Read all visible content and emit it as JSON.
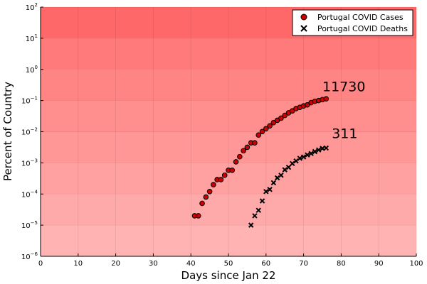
{
  "chart_data": {
    "type": "scatter",
    "title": "",
    "xlabel": "Days since Jan 22",
    "ylabel": "Percent of Country",
    "xlim": [
      0,
      100
    ],
    "ylim_log10": [
      -6,
      2
    ],
    "y_scale": "log",
    "x_ticks": [
      0,
      10,
      20,
      30,
      40,
      50,
      60,
      70,
      80,
      90,
      100
    ],
    "y_ticks": [
      {
        "exp": -6,
        "label": "10",
        "sup": "−6"
      },
      {
        "exp": -5,
        "label": "10",
        "sup": "−5"
      },
      {
        "exp": -4,
        "label": "10",
        "sup": "−4"
      },
      {
        "exp": -3,
        "label": "10",
        "sup": "−3"
      },
      {
        "exp": -2,
        "label": "10",
        "sup": "−2"
      },
      {
        "exp": -1,
        "label": "10",
        "sup": "−1"
      },
      {
        "exp": 0,
        "label": "10",
        "sup": "0"
      },
      {
        "exp": 1,
        "label": "10",
        "sup": "1"
      },
      {
        "exp": 2,
        "label": "10",
        "sup": "2"
      }
    ],
    "grid": true,
    "legend_position": "top-right",
    "background_bands": [
      "#ffb3b3",
      "#ffaaaa",
      "#ffa1a1",
      "#ff9797",
      "#ff8e8e",
      "#ff8585",
      "#ff7a7a",
      "#ff6868"
    ],
    "series": [
      {
        "name": "Portugal COVID Cases",
        "marker": "circle",
        "color": "#cc0000",
        "x": [
          41,
          42,
          43,
          44,
          45,
          46,
          47,
          48,
          49,
          50,
          51,
          52,
          53,
          54,
          55,
          56,
          57,
          58,
          59,
          60,
          61,
          62,
          63,
          64,
          65,
          66,
          67,
          68,
          69,
          70,
          71,
          72,
          73,
          74,
          75,
          76
        ],
        "y": [
          2e-05,
          2e-05,
          5e-05,
          8e-05,
          0.00012,
          0.0002,
          0.00029,
          0.00029,
          0.0004,
          0.00058,
          0.00058,
          0.00108,
          0.00158,
          0.00245,
          0.00316,
          0.0044,
          0.0044,
          0.0078,
          0.0101,
          0.0125,
          0.0154,
          0.0196,
          0.0232,
          0.0272,
          0.0333,
          0.0404,
          0.0465,
          0.0553,
          0.0605,
          0.0671,
          0.0728,
          0.0857,
          0.0948,
          0.1,
          0.107,
          0.114
        ]
      },
      {
        "name": "Portugal COVID Deaths",
        "marker": "cross",
        "color": "#000000",
        "x": [
          56,
          57,
          58,
          59,
          60,
          61,
          62,
          63,
          64,
          65,
          66,
          67,
          68,
          69,
          70,
          71,
          72,
          73,
          74,
          75,
          76
        ],
        "y": [
          1e-05,
          2e-05,
          3e-05,
          6e-05,
          0.00012,
          0.00014,
          0.00023,
          0.00033,
          0.0004,
          0.0006,
          0.00072,
          0.00095,
          0.00115,
          0.0014,
          0.00155,
          0.0018,
          0.002,
          0.0023,
          0.0026,
          0.0029,
          0.003
        ]
      }
    ],
    "annotations": [
      {
        "text": "11730",
        "x": 75,
        "y_exp": -0.7
      },
      {
        "text": "311",
        "x": 77.5,
        "y_exp": -2.2
      }
    ]
  }
}
